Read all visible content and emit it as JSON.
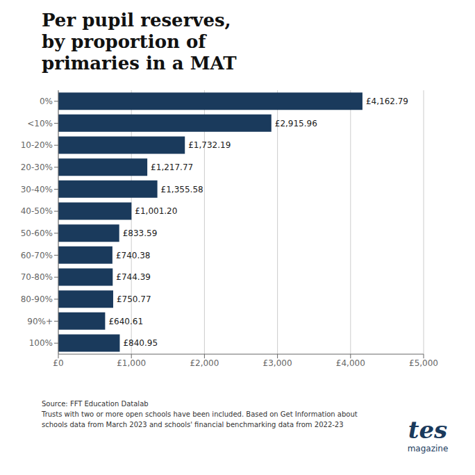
{
  "chart_data": {
    "type": "bar",
    "orientation": "horizontal",
    "title": "Per pupil reserves,\nby proportion of\nprimaries in a MAT",
    "categories": [
      "0%",
      "<10%",
      "10-20%",
      "20-30%",
      "30-40%",
      "40-50%",
      "50-60%",
      "60-70%",
      "70-80%",
      "80-90%",
      "90%+",
      "100%"
    ],
    "values": [
      4162.79,
      2915.96,
      1732.19,
      1217.77,
      1355.58,
      1001.2,
      833.59,
      740.38,
      744.39,
      750.77,
      640.61,
      840.95
    ],
    "value_labels": [
      "£4,162.79",
      "£2,915.96",
      "£1,732.19",
      "£1,217.77",
      "£1,355.58",
      "£1,001.20",
      "£833.59",
      "£740.38",
      "£744.39",
      "£750.77",
      "£640.61",
      "£840.95"
    ],
    "data_labels": true,
    "color": "#1a3a5c",
    "xlim": [
      0,
      5000
    ],
    "xticks": [
      {
        "value": 0,
        "label": "£0"
      },
      {
        "value": 1000,
        "label": "£1,000"
      },
      {
        "value": 2000,
        "label": "£2,000"
      },
      {
        "value": 3000,
        "label": "£3,000"
      },
      {
        "value": 4000,
        "label": "£4,000"
      },
      {
        "value": 5000,
        "label": "£5,000"
      }
    ],
    "grid": true,
    "annotations": [
      "Source: FFT Education Datalab",
      "Trusts with two or more open schools have been included. Based on Get Information about",
      "schools data from March 2023 and schools' financial benchmarking data from 2022-23",
      "tes",
      "magazine"
    ]
  }
}
